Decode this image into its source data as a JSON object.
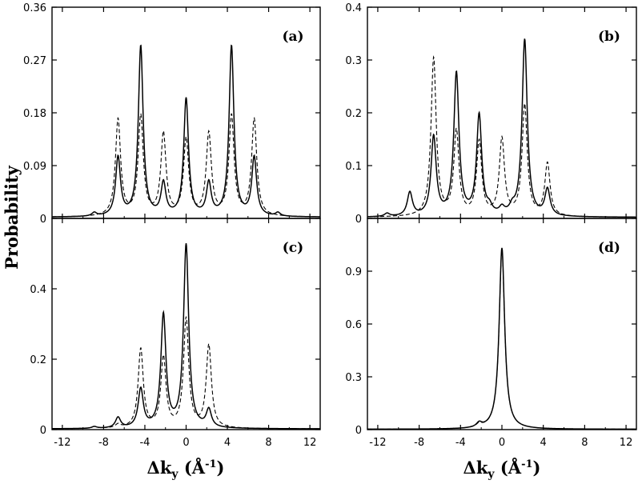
{
  "figure": {
    "ylabel": "Probability",
    "xlabel": {
      "main": "Δk",
      "sub": "y",
      "unit_open": " (",
      "unit": "Å",
      "unit_sup": "-1",
      "unit_close": ")"
    }
  },
  "chart_data": [
    {
      "type": "line",
      "panel": "(a)",
      "xlim": [
        -13,
        13
      ],
      "ylim": [
        0,
        0.36
      ],
      "xticks": [
        -12,
        -8,
        -4,
        0,
        4,
        8,
        12
      ],
      "yticks": [
        0,
        0.09,
        0.18,
        0.27,
        0.36
      ],
      "ytick_labels": [
        "0",
        "0.09",
        "0.18",
        "0.27",
        "0.36"
      ],
      "show_x_tick_labels": false,
      "series": [
        {
          "name": "solid",
          "style": "solid",
          "width": 0.28,
          "baseline": 0.002,
          "peaks": [
            [
              -8.9,
              0.006
            ],
            [
              -6.6,
              0.1
            ],
            [
              -4.4,
              0.29
            ],
            [
              -2.2,
              0.055
            ],
            [
              0,
              0.2
            ],
            [
              2.2,
              0.055
            ],
            [
              4.4,
              0.29
            ],
            [
              6.6,
              0.1
            ],
            [
              8.9,
              0.006
            ]
          ]
        },
        {
          "name": "dashed",
          "style": "dashed",
          "width": 0.3,
          "baseline": 0.002,
          "peaks": [
            [
              -6.6,
              0.165
            ],
            [
              -4.4,
              0.17
            ],
            [
              -2.2,
              0.14
            ],
            [
              0,
              0.13
            ],
            [
              2.2,
              0.14
            ],
            [
              4.4,
              0.17
            ],
            [
              6.6,
              0.165
            ]
          ]
        }
      ]
    },
    {
      "type": "line",
      "panel": "(b)",
      "xlim": [
        -13,
        13
      ],
      "ylim": [
        0,
        0.4
      ],
      "xticks": [
        -12,
        -8,
        -4,
        0,
        4,
        8,
        12
      ],
      "yticks": [
        0,
        0.1,
        0.2,
        0.3,
        0.4
      ],
      "ytick_labels": [
        "0",
        "0.1",
        "0.2",
        "0.3",
        "0.4"
      ],
      "show_x_tick_labels": false,
      "series": [
        {
          "name": "solid",
          "style": "solid",
          "width": 0.3,
          "baseline": 0.002,
          "peaks": [
            [
              -11.1,
              0.006
            ],
            [
              -8.9,
              0.045
            ],
            [
              -6.6,
              0.15
            ],
            [
              -4.4,
              0.27
            ],
            [
              -2.2,
              0.19
            ],
            [
              -1.2,
              0.012
            ],
            [
              0,
              0.012
            ],
            [
              1.0,
              0.012
            ],
            [
              2.2,
              0.335
            ],
            [
              4.4,
              0.05
            ]
          ]
        },
        {
          "name": "dashed",
          "style": "dashed",
          "width": 0.3,
          "baseline": 0.002,
          "peaks": [
            [
              -6.6,
              0.3
            ],
            [
              -4.4,
              0.16
            ],
            [
              -2.2,
              0.14
            ],
            [
              0,
              0.145
            ],
            [
              2.2,
              0.21
            ],
            [
              4.4,
              0.1
            ]
          ]
        }
      ]
    },
    {
      "type": "line",
      "panel": "(c)",
      "xlim": [
        -13,
        13
      ],
      "ylim": [
        0,
        0.6
      ],
      "xticks": [
        -12,
        -8,
        -4,
        0,
        4,
        8,
        12
      ],
      "yticks": [
        0,
        0.2,
        0.4
      ],
      "ytick_labels": [
        "0",
        "0.2",
        "0.4"
      ],
      "xtick_labels": [
        "-12",
        "-8",
        "-4",
        "0",
        "4",
        "8",
        "12"
      ],
      "show_x_tick_labels": true,
      "series": [
        {
          "name": "solid",
          "style": "solid",
          "width": 0.3,
          "baseline": 0.002,
          "peaks": [
            [
              -8.9,
              0.005
            ],
            [
              -6.6,
              0.03
            ],
            [
              -4.4,
              0.11
            ],
            [
              -2.2,
              0.32
            ],
            [
              0,
              0.52
            ],
            [
              2.2,
              0.05
            ]
          ]
        },
        {
          "name": "dashed",
          "style": "dashed",
          "width": 0.3,
          "baseline": 0.002,
          "peaks": [
            [
              -8.9,
              0.005
            ],
            [
              -6.6,
              0.01
            ],
            [
              -4.4,
              0.225
            ],
            [
              -2.2,
              0.2
            ],
            [
              0,
              0.31
            ],
            [
              2.2,
              0.235
            ]
          ]
        }
      ]
    },
    {
      "type": "line",
      "panel": "(d)",
      "xlim": [
        -13,
        13
      ],
      "ylim": [
        0,
        1.2
      ],
      "xticks": [
        -12,
        -8,
        -4,
        0,
        4,
        8,
        12
      ],
      "yticks": [
        0,
        0.3,
        0.6,
        0.9
      ],
      "ytick_labels": [
        "0",
        "0.3",
        "0.6",
        "0.9"
      ],
      "xtick_labels": [
        "-12",
        "-8",
        "-4",
        "0",
        "4",
        "8",
        "12"
      ],
      "show_x_tick_labels": true,
      "series": [
        {
          "name": "solid",
          "style": "solid",
          "width": 0.32,
          "baseline": 0.002,
          "peaks": [
            [
              -2.2,
              0.025
            ],
            [
              0,
              1.03
            ]
          ]
        },
        {
          "name": "dashed",
          "style": "dashed",
          "width": 0.32,
          "baseline": 0.002,
          "peaks": [
            [
              -2.2,
              0.02
            ],
            [
              0,
              1.02
            ]
          ]
        }
      ]
    }
  ]
}
